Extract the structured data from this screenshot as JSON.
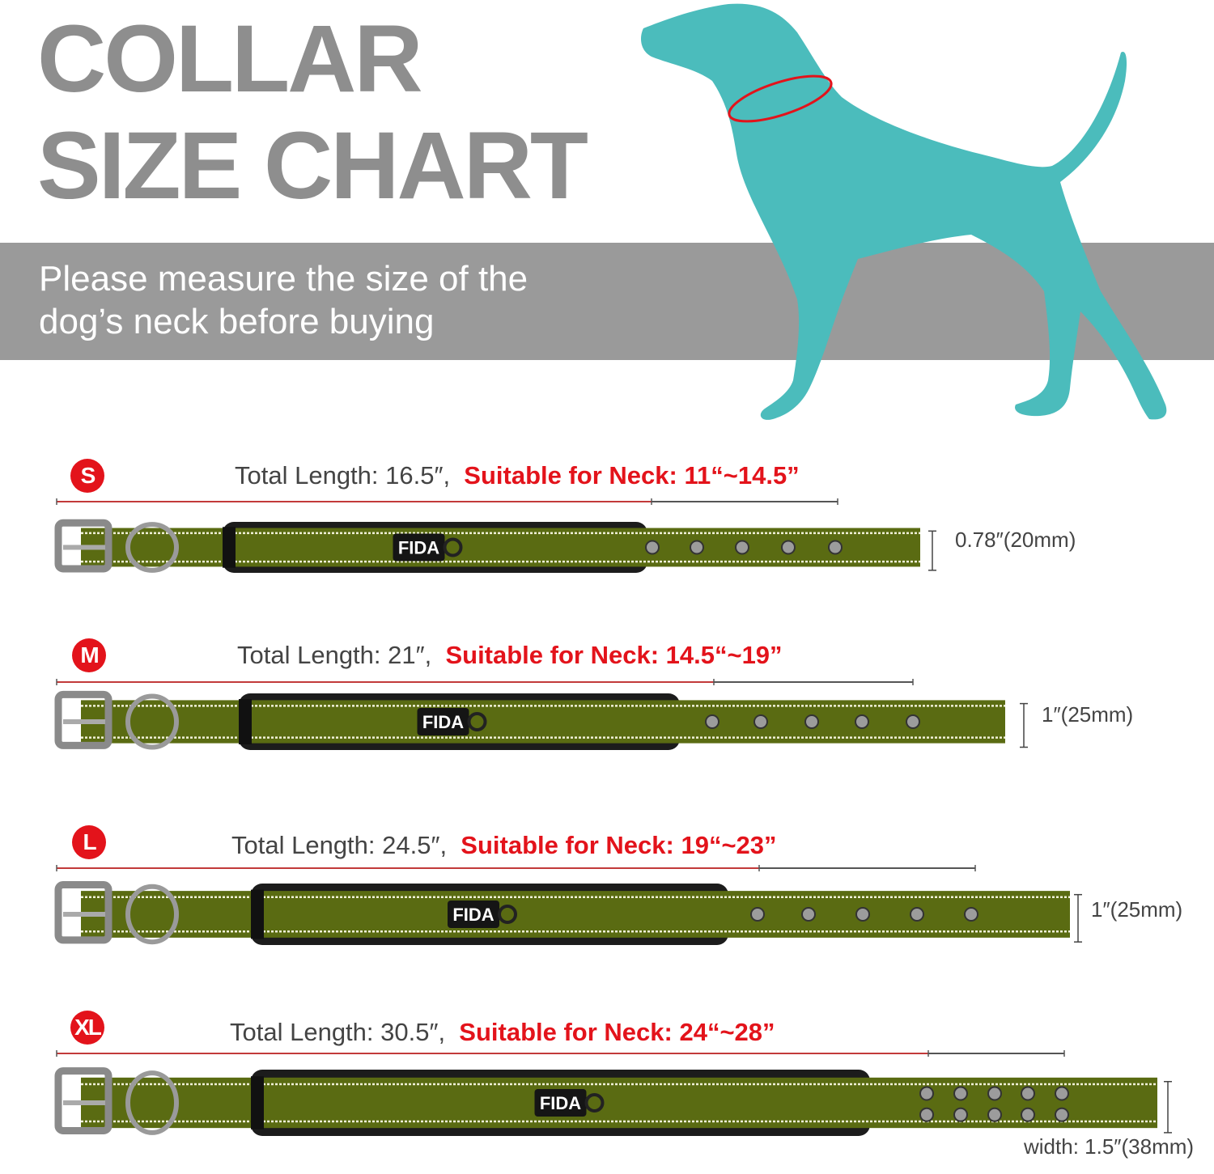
{
  "title": {
    "line1": "COLLAR",
    "line2": "SIZE CHART"
  },
  "subtitle": {
    "line1": "Please measure the size of the",
    "line2": "dog’s neck before buying"
  },
  "brand": "FIDA",
  "colors": {
    "title_gray": "#8e8e8e",
    "band_gray": "#9a9a9a",
    "dog_teal": "#4bbcbc",
    "accent_red": "#e3131b",
    "collar_green": "#5a6b12"
  },
  "sizes": [
    {
      "badge": "S",
      "total_length": "Total Length: 16.5″,",
      "neck": "Suitable for Neck: 11“~14.5”",
      "width": "0.78″(20mm)"
    },
    {
      "badge": "M",
      "total_length": "Total Length: 21″,",
      "neck": "Suitable for Neck: 14.5“~19”",
      "width": "1″(25mm)"
    },
    {
      "badge": "L",
      "total_length": "Total Length: 24.5″,",
      "neck": "Suitable for Neck: 19“~23”",
      "width": "1″(25mm)"
    },
    {
      "badge": "XL",
      "total_length": "Total Length: 30.5″,",
      "neck": "Suitable for Neck: 24“~28”",
      "width": "width: 1.5″(38mm)"
    }
  ]
}
